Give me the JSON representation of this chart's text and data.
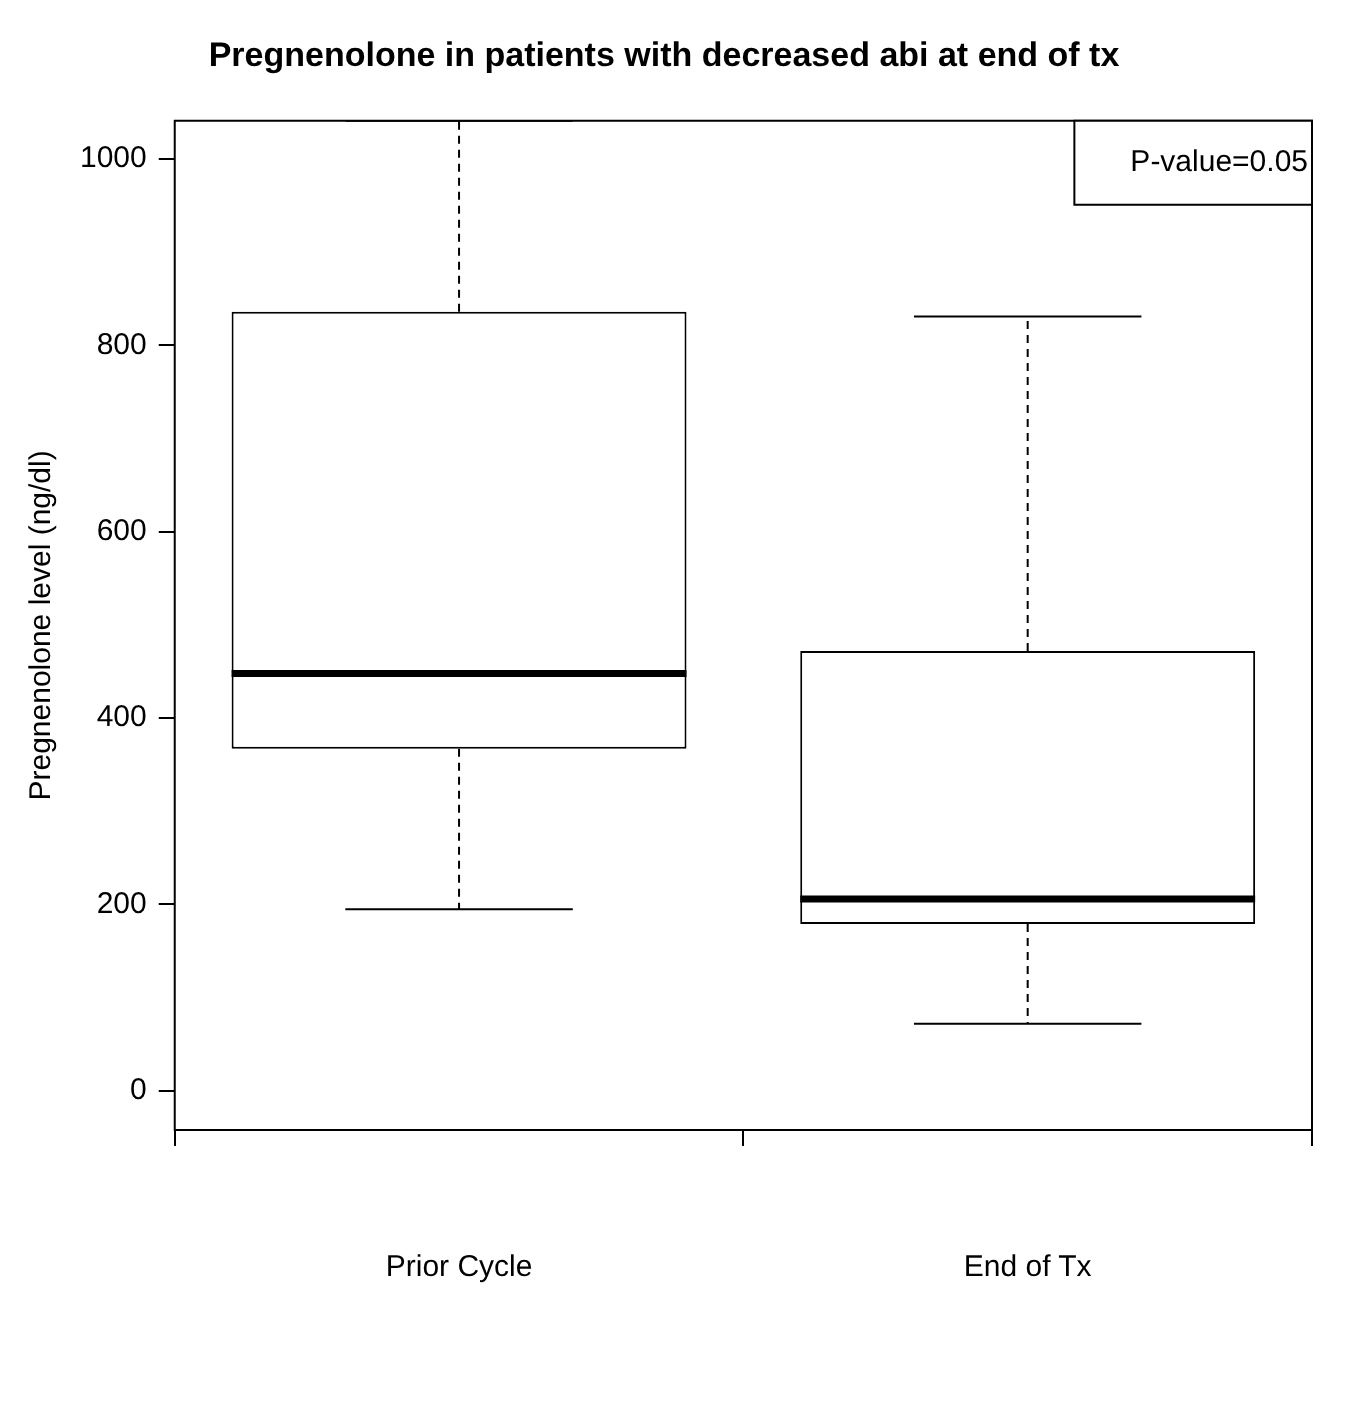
{
  "chart_data": {
    "type": "box",
    "title": "Pregnenolone in patients with decreased abi at end of tx",
    "ylabel": "Pregnenolone level (ng/dl)",
    "categories": [
      "Prior Cycle",
      "End of Tx"
    ],
    "boxes": [
      {
        "low": 195,
        "q1": 367,
        "median": 448,
        "q3": 836,
        "high": 1041
      },
      {
        "low": 72,
        "q1": 179,
        "median": 206,
        "q3": 472,
        "high": 831
      }
    ],
    "ylim": [
      -42,
      1041
    ],
    "yticks": [
      0,
      200,
      400,
      600,
      800,
      1000
    ],
    "grid": false,
    "legend": false,
    "annotations": [
      "P-value=0.05"
    ]
  }
}
